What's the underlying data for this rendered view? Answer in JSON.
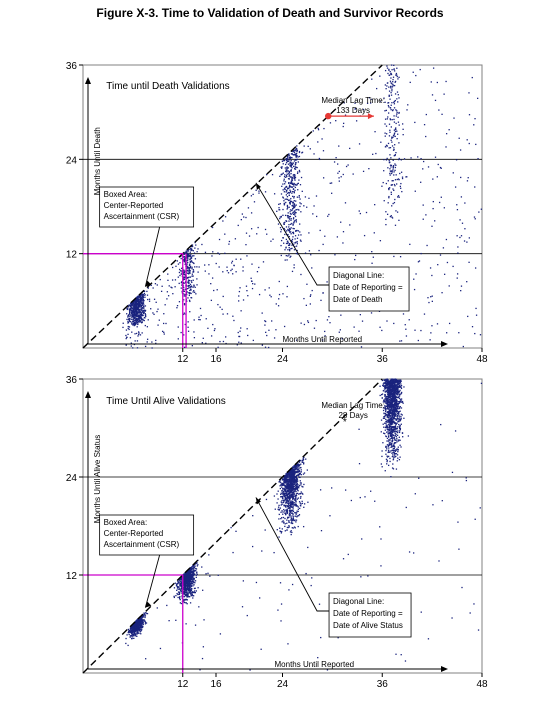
{
  "figure_title": "Figure X-3. Time to Validation of Death and Survivor Records",
  "chart_data": [
    {
      "type": "scatter",
      "title": "Time until Death Validations",
      "xlabel": "Months Until Reported",
      "ylabel": "Months Until Death",
      "xlim": [
        0,
        48
      ],
      "ylim": [
        0,
        36
      ],
      "x_ticks": [
        "12",
        "16",
        "24",
        "36",
        "48"
      ],
      "x_tick_values": [
        12,
        16,
        24,
        36,
        48
      ],
      "y_ticks": [
        "12",
        "24",
        "36"
      ],
      "y_tick_values": [
        12,
        24,
        36
      ],
      "gridlines_y": [
        12,
        24
      ],
      "series": [
        {
          "color": "#1a237e",
          "clusters": [
            {
              "x_center": 6.5,
              "x_spread": 0.5,
              "count": 550
            },
            {
              "x_center": 12.5,
              "x_spread": 0.5,
              "count": 280
            },
            {
              "x_center": 25,
              "x_spread": 0.6,
              "count": 420
            },
            {
              "x_center": 37.2,
              "x_spread": 0.5,
              "count": 220
            }
          ],
          "scattered_count": 650
        }
      ],
      "annotations": {
        "median_lag": {
          "lines": [
            "Median Lag Time:",
            "133 Days"
          ],
          "point": [
            29.5,
            29.5
          ],
          "arrow_to_x": 35
        },
        "boxed_area": {
          "lines": [
            "Boxed Area:",
            "Center-Reported",
            "Ascertainment (CSR)"
          ],
          "box_to": [
            12,
            12
          ]
        },
        "diagonal": {
          "lines": [
            "Diagonal Line:",
            "Date of Reporting =",
            "Date of Death"
          ]
        }
      },
      "accent_color": "#e53935",
      "box_color": "#cc00cc"
    },
    {
      "type": "scatter",
      "title": "Time Until Alive Validations",
      "xlabel": "Months Until Reported",
      "ylabel": "Months Until Alive Status",
      "xlim": [
        0,
        48
      ],
      "ylim": [
        0,
        36
      ],
      "x_ticks": [
        "12",
        "16",
        "24",
        "36",
        "48"
      ],
      "x_tick_values": [
        12,
        16,
        24,
        36,
        48
      ],
      "y_ticks": [
        "12",
        "24",
        "36"
      ],
      "y_tick_values": [
        12,
        24,
        36
      ],
      "gridlines_y": [
        12,
        24
      ],
      "series": [
        {
          "color": "#1a237e",
          "clusters": [
            {
              "x_center": 6.5,
              "x_spread": 0.4,
              "count": 700
            },
            {
              "x_center": 12.5,
              "x_spread": 0.5,
              "count": 900
            },
            {
              "x_center": 25,
              "x_spread": 0.6,
              "count": 1100
            },
            {
              "x_center": 37.2,
              "x_spread": 0.5,
              "count": 1300
            }
          ],
          "scattered_count": 120
        }
      ],
      "annotations": {
        "median_lag": {
          "lines": [
            "Median Lag Time:",
            "28 Days"
          ],
          "point": [
            31.5,
            31
          ],
          "arrow_to_x": 31.5
        },
        "boxed_area": {
          "lines": [
            "Boxed Area:",
            "Center-Reported",
            "Ascertainment (CSR)"
          ],
          "box_to": [
            12,
            12
          ]
        },
        "diagonal": {
          "lines": [
            "Diagonal Line:",
            "Date of Reporting =",
            "Date of Alive Status"
          ]
        }
      },
      "accent_color": "#e53935",
      "box_color": "#cc00cc"
    }
  ]
}
